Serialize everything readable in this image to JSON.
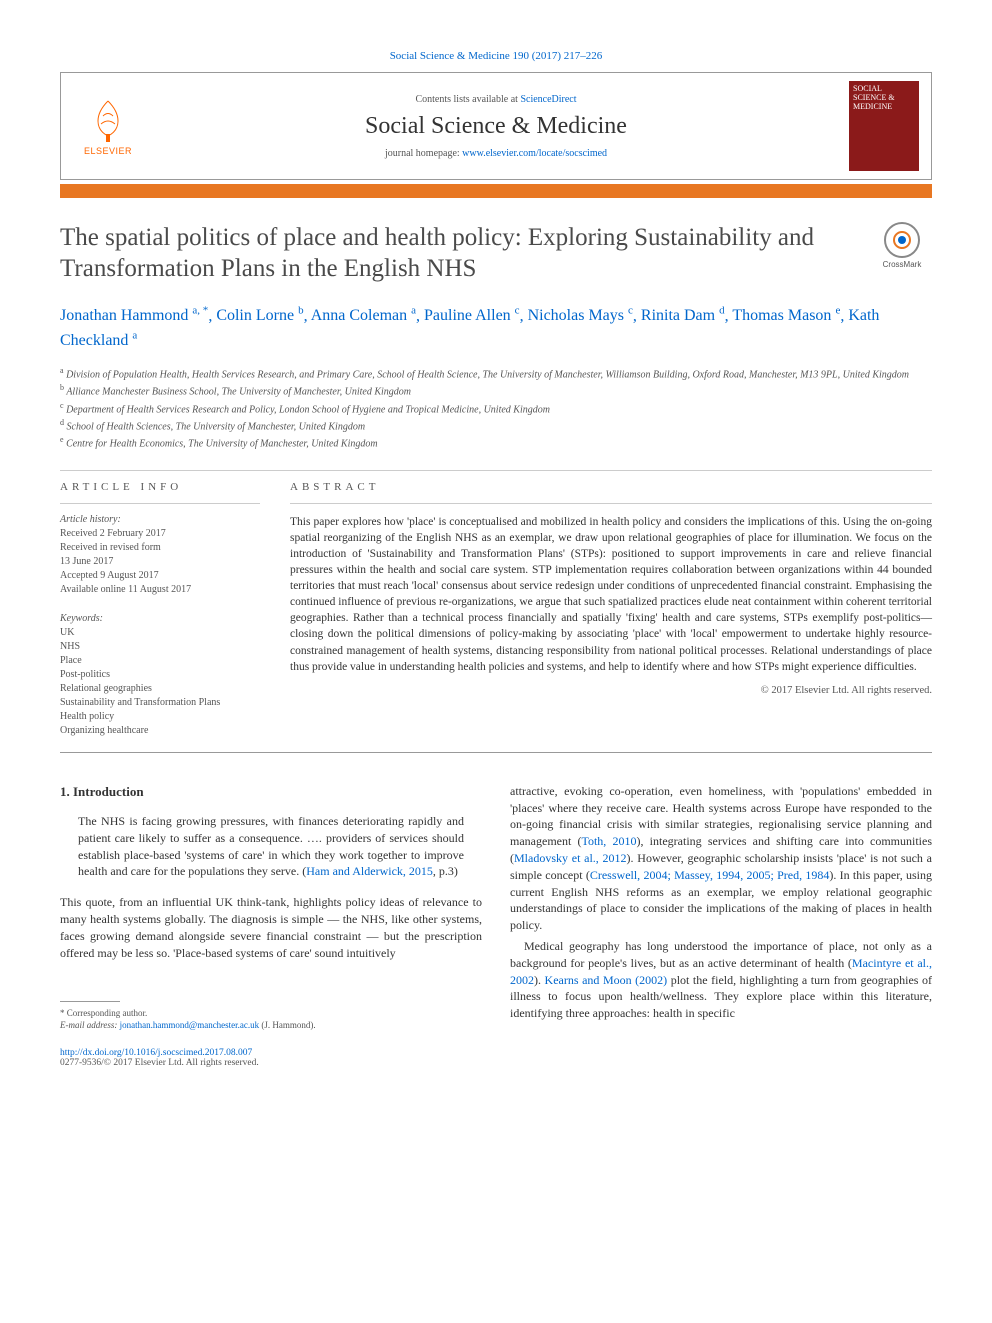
{
  "journal_ref": "Social Science & Medicine 190 (2017) 217–226",
  "header": {
    "contents_prefix": "Contents lists available at ",
    "contents_link": "ScienceDirect",
    "journal_title": "Social Science & Medicine",
    "homepage_prefix": "journal homepage: ",
    "homepage_url": "www.elsevier.com/locate/socscimed",
    "publisher": "ELSEVIER",
    "cover_text": "SOCIAL SCIENCE & MEDICINE"
  },
  "colors": {
    "orange_bar": "#e87722",
    "link": "#0066cc",
    "cover_bg": "#8b1a1a",
    "elsevier_orange": "#ff6600"
  },
  "article": {
    "title": "The spatial politics of place and health policy: Exploring Sustainability and Transformation Plans in the English NHS",
    "crossmark": "CrossMark"
  },
  "authors": [
    {
      "name": "Jonathan Hammond",
      "aff": "a, *"
    },
    {
      "name": "Colin Lorne",
      "aff": "b"
    },
    {
      "name": "Anna Coleman",
      "aff": "a"
    },
    {
      "name": "Pauline Allen",
      "aff": "c"
    },
    {
      "name": "Nicholas Mays",
      "aff": "c"
    },
    {
      "name": "Rinita Dam",
      "aff": "d"
    },
    {
      "name": "Thomas Mason",
      "aff": "e"
    },
    {
      "name": "Kath Checkland",
      "aff": "a"
    }
  ],
  "affiliations": [
    {
      "sup": "a",
      "text": "Division of Population Health, Health Services Research, and Primary Care, School of Health Science, The University of Manchester, Williamson Building, Oxford Road, Manchester, M13 9PL, United Kingdom"
    },
    {
      "sup": "b",
      "text": "Alliance Manchester Business School, The University of Manchester, United Kingdom"
    },
    {
      "sup": "c",
      "text": "Department of Health Services Research and Policy, London School of Hygiene and Tropical Medicine, United Kingdom"
    },
    {
      "sup": "d",
      "text": "School of Health Sciences, The University of Manchester, United Kingdom"
    },
    {
      "sup": "e",
      "text": "Centre for Health Economics, The University of Manchester, United Kingdom"
    }
  ],
  "info": {
    "label": "ARTICLE INFO",
    "history_label": "Article history:",
    "history": [
      "Received 2 February 2017",
      "Received in revised form",
      "13 June 2017",
      "Accepted 9 August 2017",
      "Available online 11 August 2017"
    ],
    "keywords_label": "Keywords:",
    "keywords": [
      "UK",
      "NHS",
      "Place",
      "Post-politics",
      "Relational geographies",
      "Sustainability and Transformation Plans",
      "Health policy",
      "Organizing healthcare"
    ]
  },
  "abstract": {
    "label": "ABSTRACT",
    "text": "This paper explores how 'place' is conceptualised and mobilized in health policy and considers the implications of this. Using the on-going spatial reorganizing of the English NHS as an exemplar, we draw upon relational geographies of place for illumination. We focus on the introduction of 'Sustainability and Transformation Plans' (STPs): positioned to support improvements in care and relieve financial pressures within the health and social care system. STP implementation requires collaboration between organizations within 44 bounded territories that must reach 'local' consensus about service redesign under conditions of unprecedented financial constraint. Emphasising the continued influence of previous re-organizations, we argue that such spatialized practices elude neat containment within coherent territorial geographies. Rather than a technical process financially and spatially 'fixing' health and care systems, STPs exemplify post-politics—closing down the political dimensions of policy-making by associating 'place' with 'local' empowerment to undertake highly resource-constrained management of health systems, distancing responsibility from national political processes. Relational understandings of place thus provide value in understanding health policies and systems, and help to identify where and how STPs might experience difficulties.",
    "copyright": "© 2017 Elsevier Ltd. All rights reserved."
  },
  "body": {
    "section_heading": "1. Introduction",
    "quote_p1": "The NHS is facing growing pressures, with finances deteriorating rapidly and patient care likely to suffer as a consequence. …. providers of services should establish place-based 'systems of care' in which they work together to improve health and care for the populations they serve. (",
    "quote_cite": "Ham and Alderwick, 2015",
    "quote_p2": ", p.3)",
    "col1_p1": "This quote, from an influential UK think-tank, highlights policy ideas of relevance to many health systems globally. The diagnosis is simple — the NHS, like other systems, faces growing demand alongside severe financial constraint — but the prescription offered may be less so. 'Place-based systems of care' sound intuitively",
    "col2_p1a": "attractive, evoking co-operation, even homeliness, with 'populations' embedded in 'places' where they receive care. Health systems across Europe have responded to the on-going financial crisis with similar strategies, regionalising service planning and management (",
    "col2_cite1": "Toth, 2010",
    "col2_p1b": "), integrating services and shifting care into communities (",
    "col2_cite2": "Mladovsky et al., 2012",
    "col2_p1c": "). However, geographic scholarship insists 'place' is not such a simple concept (",
    "col2_cite3": "Cresswell, 2004; Massey, 1994, 2005; Pred, 1984",
    "col2_p1d": "). In this paper, using current English NHS reforms as an exemplar, we employ relational geographic understandings of place to consider the implications of the making of places in health policy.",
    "col2_p2a": "Medical geography has long understood the importance of place, not only as a background for people's lives, but as an active determinant of health (",
    "col2_cite4": "Macintyre et al., 2002",
    "col2_p2b": "). ",
    "col2_cite5": "Kearns and Moon (2002)",
    "col2_p2c": " plot the field, highlighting a turn from geographies of illness to focus upon health/wellness. They explore place within this literature, identifying three approaches: health in specific"
  },
  "footnote": {
    "corr_label": "* Corresponding author.",
    "email_label": "E-mail address: ",
    "email": "jonathan.hammond@manchester.ac.uk",
    "email_suffix": " (J. Hammond)."
  },
  "footer": {
    "doi": "http://dx.doi.org/10.1016/j.socscimed.2017.08.007",
    "issn_line": "0277-9536/© 2017 Elsevier Ltd. All rights reserved."
  }
}
